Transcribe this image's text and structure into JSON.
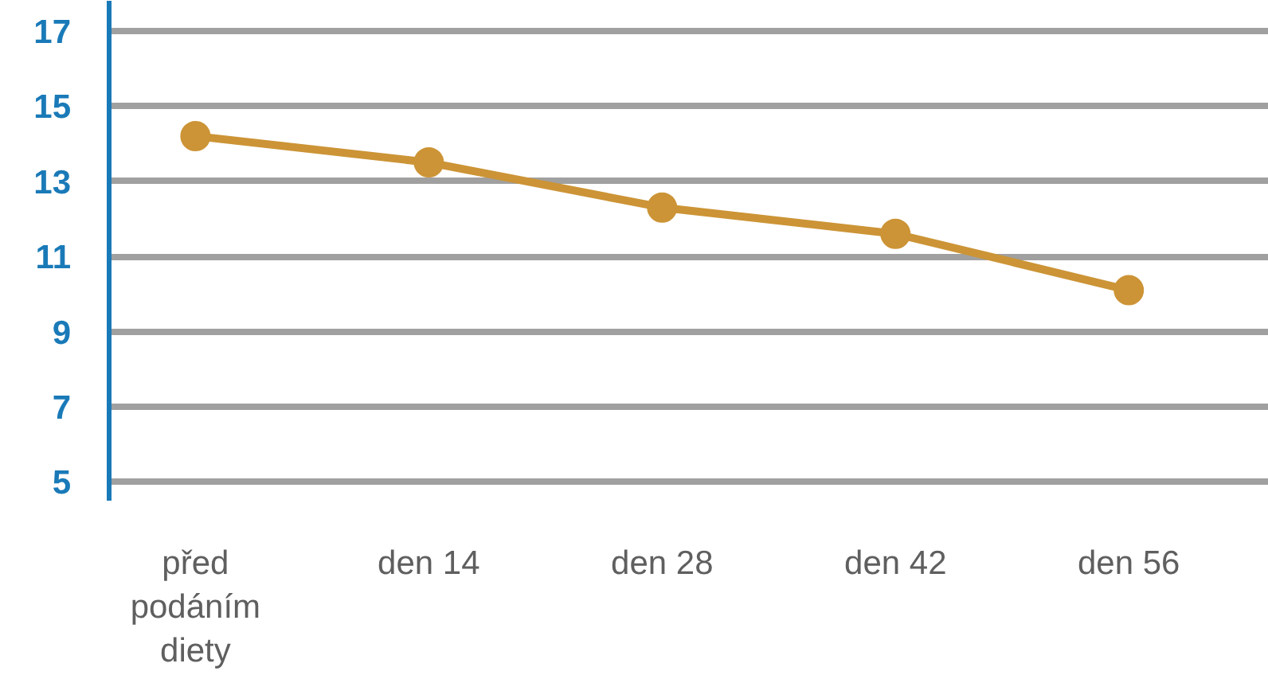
{
  "chart_data": {
    "type": "line",
    "categories": [
      "před\npodáním\ndiety",
      "den 14",
      "den 28",
      "den 42",
      "den 56"
    ],
    "series": [
      {
        "color": "#cc9436",
        "values": [
          14.2,
          13.5,
          12.3,
          11.6,
          10.1
        ]
      }
    ],
    "ylim": [
      4.5,
      17.8
    ],
    "yticks": [
      5,
      7,
      9,
      11,
      13,
      15,
      17
    ],
    "grid": "y",
    "marker": "circle",
    "line_style": "solid"
  }
}
